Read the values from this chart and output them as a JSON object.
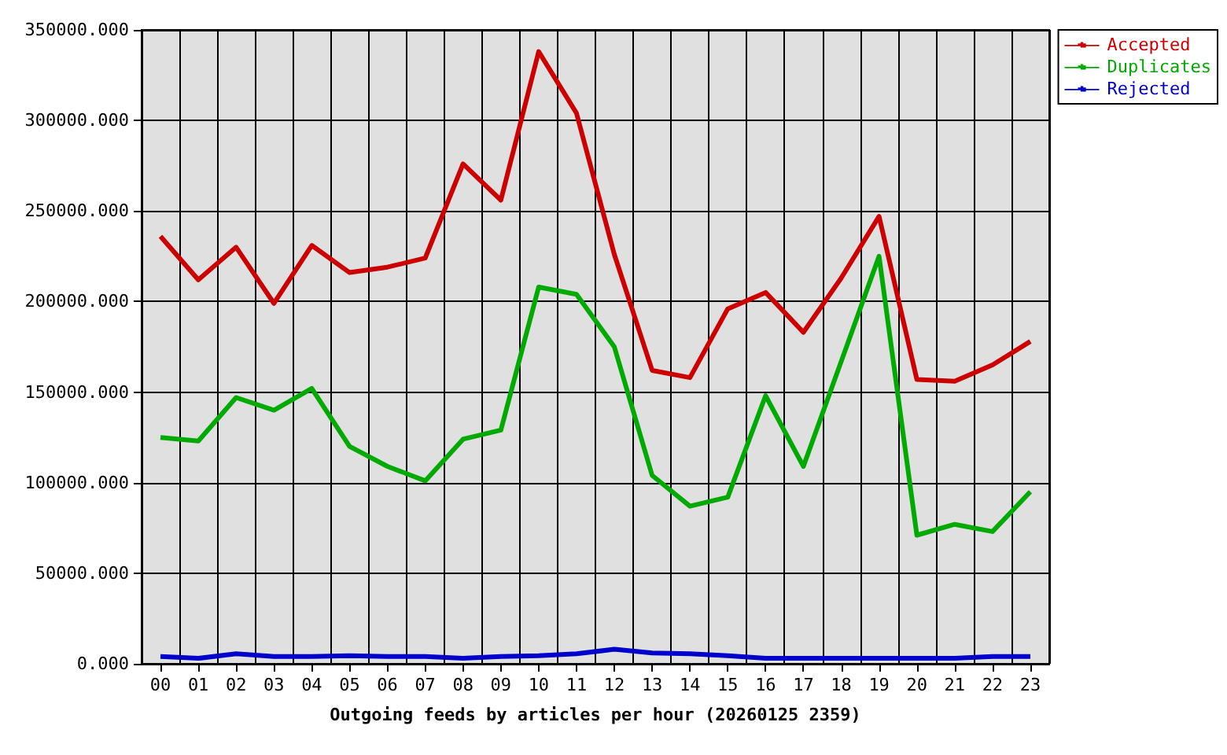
{
  "chart_data": {
    "type": "line",
    "xlabel": "Outgoing feeds by articles per hour (20260125 2359)",
    "categories": [
      "00",
      "01",
      "02",
      "03",
      "04",
      "05",
      "06",
      "07",
      "08",
      "09",
      "10",
      "11",
      "12",
      "13",
      "14",
      "15",
      "16",
      "17",
      "18",
      "19",
      "20",
      "21",
      "22",
      "23"
    ],
    "series": [
      {
        "name": "Accepted",
        "color": "#cc0000",
        "values": [
          236000,
          212000,
          230000,
          199000,
          231000,
          216000,
          219000,
          224000,
          276000,
          256000,
          338000,
          304000,
          226000,
          162000,
          158000,
          196000,
          205000,
          183000,
          213000,
          247000,
          157000,
          156000,
          165000,
          178000
        ]
      },
      {
        "name": "Duplicates",
        "color": "#00aa00",
        "values": [
          125000,
          123000,
          147000,
          140000,
          152000,
          120000,
          109000,
          101000,
          124000,
          129000,
          208000,
          204000,
          175000,
          104000,
          87000,
          92000,
          148000,
          109000,
          167000,
          225000,
          71000,
          77000,
          73000,
          95000
        ]
      },
      {
        "name": "Rejected",
        "color": "#0000cc",
        "values": [
          4000,
          3000,
          5500,
          4000,
          4000,
          4500,
          4000,
          4000,
          3000,
          4000,
          4500,
          5500,
          8000,
          6000,
          5500,
          4500,
          3000,
          3000,
          3000,
          3000,
          3000,
          3000,
          4000,
          4000
        ]
      }
    ],
    "ylim": [
      0,
      350000
    ],
    "yticks": [
      {
        "value": 0,
        "label": "0.000"
      },
      {
        "value": 50000,
        "label": "50000.000"
      },
      {
        "value": 100000,
        "label": "100000.000"
      },
      {
        "value": 150000,
        "label": "150000.000"
      },
      {
        "value": 200000,
        "label": "200000.000"
      },
      {
        "value": 250000,
        "label": "250000.000"
      },
      {
        "value": 300000,
        "label": "300000.000"
      },
      {
        "value": 350000,
        "label": "350000.000"
      }
    ],
    "grid": true,
    "legend": "top right",
    "marker": "none",
    "line_style": "solid"
  }
}
